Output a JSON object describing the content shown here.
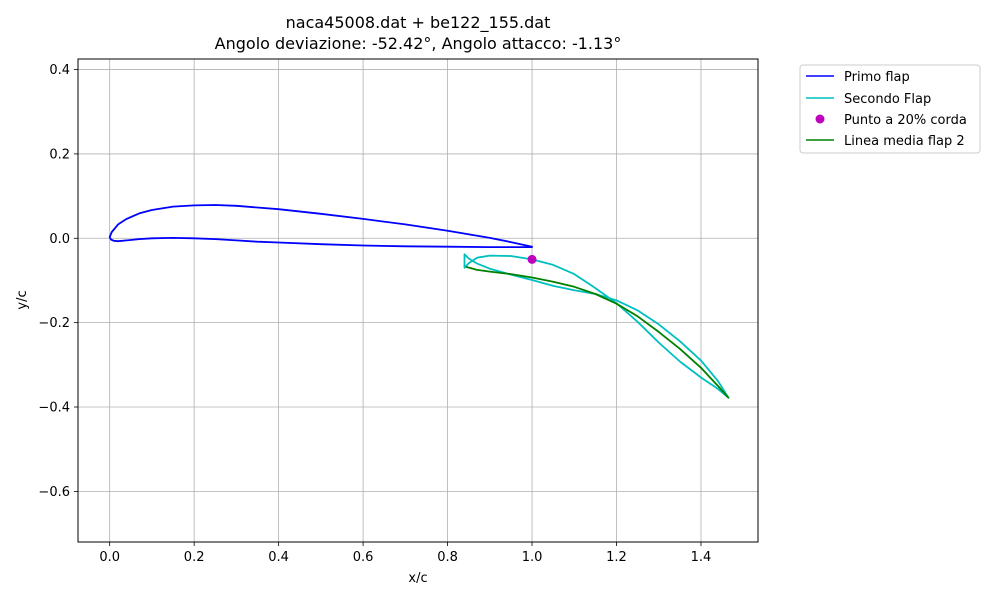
{
  "chart_data": {
    "type": "line",
    "title": "naca45008.dat + be122_155.dat",
    "subtitle": "Angolo deviazione: -52.42°, Angolo attacco: -1.13°",
    "xlabel": "x/c",
    "ylabel": "y/c",
    "xlim": [
      -0.075,
      1.535
    ],
    "ylim": [
      -0.72,
      0.425
    ],
    "xticks": [
      0.0,
      0.2,
      0.4,
      0.6,
      0.8,
      1.0,
      1.2,
      1.4
    ],
    "xtick_labels": [
      "0.0",
      "0.2",
      "0.4",
      "0.6",
      "0.8",
      "1.0",
      "1.2",
      "1.4"
    ],
    "yticks": [
      0.4,
      0.2,
      0.0,
      -0.2,
      -0.4,
      -0.6
    ],
    "ytick_labels": [
      "0.4",
      "0.2",
      "0.0",
      "−0.2",
      "−0.4",
      "−0.6"
    ],
    "grid": true,
    "legend_position": "outside-top-right",
    "series": [
      {
        "name": "Primo flap",
        "kind": "line",
        "color": "#0000ff",
        "x": [
          1.0,
          0.95,
          0.9,
          0.8,
          0.7,
          0.6,
          0.5,
          0.4,
          0.3,
          0.25,
          0.2,
          0.15,
          0.1,
          0.07,
          0.04,
          0.02,
          0.005,
          0.0,
          0.003,
          0.01,
          0.02,
          0.04,
          0.07,
          0.1,
          0.15,
          0.2,
          0.25,
          0.3,
          0.35,
          0.4,
          0.5,
          0.6,
          0.7,
          0.8,
          0.9,
          0.95,
          1.0
        ],
        "y": [
          -0.02,
          -0.009,
          0.001,
          0.018,
          0.033,
          0.046,
          0.058,
          0.069,
          0.077,
          0.079,
          0.078,
          0.075,
          0.067,
          0.059,
          0.046,
          0.033,
          0.015,
          0.003,
          -0.003,
          -0.006,
          -0.007,
          -0.005,
          -0.002,
          0.0,
          0.001,
          0.0,
          -0.002,
          -0.005,
          -0.008,
          -0.01,
          -0.014,
          -0.017,
          -0.019,
          -0.02,
          -0.021,
          -0.021,
          -0.021
        ]
      },
      {
        "name": "Secondo Flap",
        "kind": "line",
        "color": "#00bfbf",
        "x": [
          1.465,
          1.44,
          1.4,
          1.35,
          1.3,
          1.25,
          1.2,
          1.15,
          1.1,
          1.05,
          1.0,
          0.95,
          0.9,
          0.87,
          0.85,
          0.84,
          0.84,
          0.85,
          0.87,
          0.9,
          0.95,
          1.0,
          1.05,
          1.1,
          1.15,
          1.2,
          1.25,
          1.3,
          1.35,
          1.4,
          1.44,
          1.465
        ],
        "y": [
          -0.378,
          -0.338,
          -0.29,
          -0.244,
          -0.204,
          -0.171,
          -0.147,
          -0.132,
          -0.123,
          -0.113,
          -0.099,
          -0.086,
          -0.072,
          -0.06,
          -0.048,
          -0.038,
          -0.07,
          -0.059,
          -0.046,
          -0.041,
          -0.042,
          -0.05,
          -0.063,
          -0.085,
          -0.118,
          -0.154,
          -0.198,
          -0.247,
          -0.292,
          -0.33,
          -0.357,
          -0.378
        ]
      },
      {
        "name": "Punto a 20% corda",
        "kind": "marker",
        "color": "#bf00bf",
        "x": [
          1.0
        ],
        "y": [
          -0.05
        ]
      },
      {
        "name": "Linea media flap 2",
        "kind": "line",
        "color": "#008000",
        "x": [
          0.845,
          0.87,
          0.9,
          0.95,
          1.0,
          1.05,
          1.1,
          1.15,
          1.2,
          1.25,
          1.3,
          1.35,
          1.4,
          1.44,
          1.465
        ],
        "y": [
          -0.068,
          -0.075,
          -0.079,
          -0.085,
          -0.093,
          -0.103,
          -0.115,
          -0.132,
          -0.155,
          -0.185,
          -0.222,
          -0.262,
          -0.307,
          -0.35,
          -0.378
        ]
      }
    ]
  }
}
